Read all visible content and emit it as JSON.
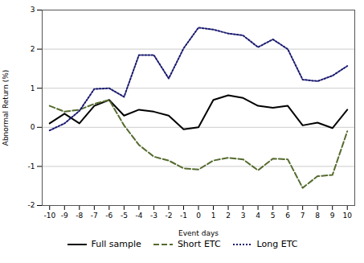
{
  "chart_data": {
    "type": "line",
    "xlabel": "Event days",
    "ylabel": "Abnormal Return (%)",
    "x": [
      -10,
      -9,
      -8,
      -7,
      -6,
      -5,
      -4,
      -3,
      -2,
      -1,
      0,
      1,
      2,
      3,
      4,
      5,
      6,
      7,
      8,
      9,
      10
    ],
    "series": [
      {
        "name": "Full sample",
        "color": "#000000",
        "line_style": "solid",
        "values": [
          0.1,
          0.35,
          0.1,
          0.55,
          0.7,
          0.3,
          0.45,
          0.4,
          0.3,
          -0.05,
          0.0,
          0.7,
          0.82,
          0.75,
          0.55,
          0.5,
          0.55,
          0.05,
          0.12,
          -0.02,
          0.45
        ]
      },
      {
        "name": "Short ETC",
        "color": "#556B2F",
        "line_style": "dashed",
        "values": [
          0.55,
          0.4,
          0.45,
          0.6,
          0.7,
          0.05,
          -0.45,
          -0.75,
          -0.85,
          -1.05,
          -1.08,
          -0.85,
          -0.78,
          -0.82,
          -1.1,
          -0.8,
          -0.82,
          -1.55,
          -1.25,
          -1.22,
          -0.1
        ]
      },
      {
        "name": "Long ETC",
        "color": "#191970",
        "line_style": "dotted",
        "values": [
          -0.08,
          0.1,
          0.42,
          0.98,
          1.0,
          0.78,
          1.85,
          1.85,
          1.25,
          2.02,
          2.55,
          2.5,
          2.4,
          2.35,
          2.05,
          2.25,
          2.0,
          1.22,
          1.18,
          1.32,
          1.57
        ]
      }
    ],
    "xlim": [
      -10.5,
      10.5
    ],
    "xticks": [
      -10,
      -9,
      -8,
      -7,
      -6,
      -5,
      -4,
      -3,
      -2,
      -1,
      0,
      1,
      2,
      3,
      4,
      5,
      6,
      7,
      8,
      9,
      10
    ],
    "ylim": [
      -2,
      3
    ],
    "yticks": [
      -2,
      -1,
      0,
      1,
      2,
      3
    ],
    "grid": "y",
    "legend": "bottom"
  }
}
